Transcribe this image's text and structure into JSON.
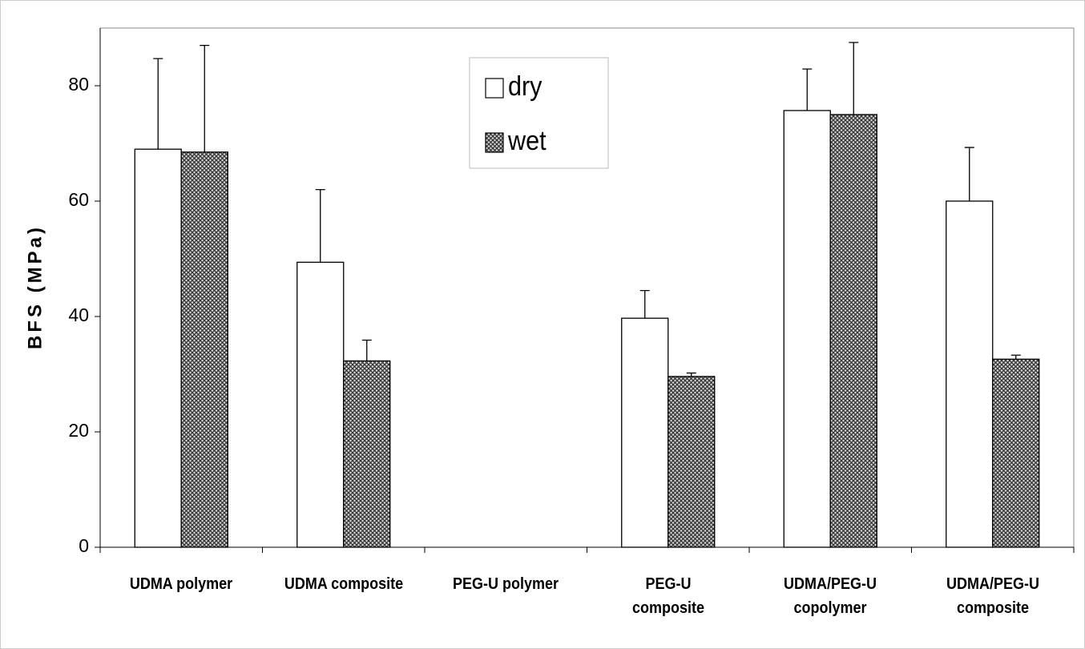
{
  "chart_data": {
    "type": "bar",
    "y_label": "BFS (MPa)",
    "categories": [
      "UDMA polymer",
      "UDMA composite",
      "PEG-U polymer",
      "PEG-U\ncomposite",
      "UDMA/PEG-U\ncopolymer",
      "UDMA/PEG-U\ncomposite"
    ],
    "series": [
      {
        "name": "dry",
        "color": "#ffffff",
        "values": [
          69,
          49.4,
          null,
          39.7,
          75.7,
          60
        ],
        "errors": [
          15.7,
          12.6,
          null,
          4.8,
          7.2,
          9.3
        ]
      },
      {
        "name": "wet",
        "color": "#555555",
        "pattern": "crosshatch",
        "values": [
          68.5,
          32.3,
          null,
          29.6,
          75,
          32.6
        ],
        "errors": [
          18.5,
          3.6,
          null,
          0.6,
          12.5,
          0.7
        ]
      }
    ],
    "ylim": [
      0,
      90
    ],
    "yticks": [
      0,
      20,
      40,
      60,
      80
    ],
    "grid": false,
    "legend": "top-center"
  }
}
